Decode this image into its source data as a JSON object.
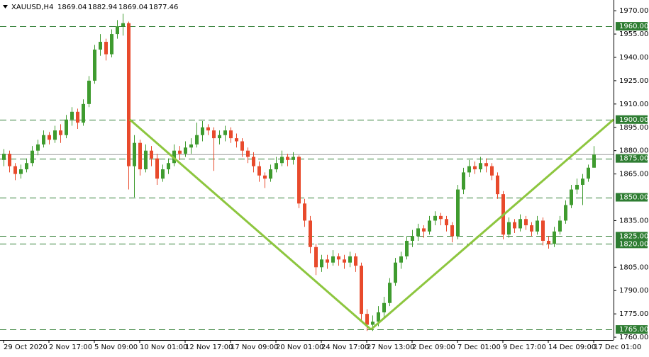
{
  "chart_data": {
    "type": "candlestick",
    "symbol": "XAUUSD,H4",
    "header_ohlc": [
      1869.04,
      1882.94,
      1869.04,
      1877.46
    ],
    "up_color": "#3f9b2f",
    "down_color": "#e84a2c",
    "level_color": "#2e7d32",
    "trend_color": "#8dc63f",
    "ylim": [
      1758.2,
      1976.9
    ],
    "yticks": [
      {
        "value": 1970,
        "label": "1970.00"
      },
      {
        "value": 1955,
        "label": "1955.00"
      },
      {
        "value": 1940,
        "label": "1940.00"
      },
      {
        "value": 1925,
        "label": "1925.00"
      },
      {
        "value": 1910,
        "label": "1910.00"
      },
      {
        "value": 1895,
        "label": "1895.00"
      },
      {
        "value": 1880,
        "label": "1880.00"
      },
      {
        "value": 1865,
        "label": "1865.00"
      },
      {
        "value": 1835,
        "label": "1835.00"
      },
      {
        "value": 1805,
        "label": "1805.00"
      },
      {
        "value": 1790,
        "label": "1790.00"
      },
      {
        "value": 1775,
        "label": "1775.00"
      },
      {
        "value": 1760,
        "label": "1760.00"
      }
    ],
    "levels": [
      {
        "value": 1960,
        "label": "1960.00"
      },
      {
        "value": 1900,
        "label": "1900.00"
      },
      {
        "value": 1875,
        "label": "1875.00"
      },
      {
        "value": 1850,
        "label": "1850.00"
      },
      {
        "value": 1825,
        "label": "1825.00"
      },
      {
        "value": 1820,
        "label": "1820.00"
      },
      {
        "value": 1765,
        "label": "1765.00"
      }
    ],
    "trendlines": [
      {
        "x": [
          22.25,
          64.75
        ],
        "values": [
          1900,
          1765
        ]
      },
      {
        "x": [
          64.75,
          107.5
        ],
        "values": [
          1765,
          1900
        ]
      }
    ],
    "categories": [
      "29 Oct 2020",
      null,
      null,
      null,
      null,
      null,
      null,
      null,
      "2 Nov 17:00",
      null,
      null,
      null,
      null,
      null,
      null,
      null,
      "5 Nov 09:00",
      null,
      null,
      null,
      null,
      null,
      null,
      null,
      "10 Nov 01:00",
      null,
      null,
      null,
      null,
      null,
      null,
      null,
      "12 Nov 17:00",
      null,
      null,
      null,
      null,
      null,
      null,
      null,
      "17 Nov 09:00",
      null,
      null,
      null,
      null,
      null,
      null,
      null,
      "20 Nov 01:00",
      null,
      null,
      null,
      null,
      null,
      null,
      null,
      "24 Nov 17:00",
      null,
      null,
      null,
      null,
      null,
      null,
      null,
      "27 Nov 13:00",
      null,
      null,
      null,
      null,
      null,
      null,
      null,
      "2 Dec 09:00",
      null,
      null,
      null,
      null,
      null,
      null,
      null,
      "7 Dec 01:00",
      null,
      null,
      null,
      null,
      null,
      null,
      null,
      "9 Dec 17:00",
      null,
      null,
      null,
      null,
      null,
      null,
      null,
      "14 Dec 09:00",
      null,
      null,
      null,
      null,
      null,
      null,
      null,
      "17 Dec 01:00"
    ],
    "candles": [
      [
        1874,
        1881,
        1870,
        1878
      ],
      [
        1878,
        1880,
        1866,
        1870
      ],
      [
        1870,
        1872,
        1861,
        1865
      ],
      [
        1865,
        1871,
        1862,
        1868
      ],
      [
        1868,
        1875,
        1866,
        1872
      ],
      [
        1872,
        1883,
        1870,
        1880
      ],
      [
        1880,
        1887,
        1877,
        1884
      ],
      [
        1884,
        1893,
        1882,
        1890
      ],
      [
        1890,
        1892,
        1884,
        1887
      ],
      [
        1887,
        1896,
        1885,
        1893
      ],
      [
        1893,
        1897,
        1885,
        1890
      ],
      [
        1890,
        1903,
        1888,
        1900
      ],
      [
        1900,
        1908,
        1896,
        1905
      ],
      [
        1905,
        1907,
        1894,
        1898
      ],
      [
        1898,
        1913,
        1896,
        1910
      ],
      [
        1910,
        1928,
        1908,
        1925
      ],
      [
        1925,
        1948,
        1923,
        1945
      ],
      [
        1945,
        1955,
        1941,
        1950
      ],
      [
        1950,
        1952,
        1938,
        1942
      ],
      [
        1942,
        1958,
        1940,
        1955
      ],
      [
        1955,
        1964,
        1952,
        1960
      ],
      [
        1960,
        1968,
        1954,
        1962
      ],
      [
        1962,
        1963,
        1855,
        1870
      ],
      [
        1870,
        1890,
        1850,
        1885
      ],
      [
        1885,
        1887,
        1864,
        1868
      ],
      [
        1868,
        1884,
        1866,
        1880
      ],
      [
        1880,
        1883,
        1870,
        1875
      ],
      [
        1875,
        1878,
        1858,
        1862
      ],
      [
        1862,
        1871,
        1860,
        1868
      ],
      [
        1868,
        1875,
        1865,
        1872
      ],
      [
        1872,
        1884,
        1870,
        1880
      ],
      [
        1880,
        1883,
        1874,
        1878
      ],
      [
        1878,
        1886,
        1876,
        1882
      ],
      [
        1882,
        1888,
        1878,
        1884
      ],
      [
        1884,
        1898,
        1882,
        1890
      ],
      [
        1890,
        1899,
        1886,
        1895
      ],
      [
        1895,
        1897,
        1890,
        1893
      ],
      [
        1893,
        1895,
        1867,
        1888
      ],
      [
        1888,
        1893,
        1884,
        1890
      ],
      [
        1890,
        1896,
        1886,
        1893
      ],
      [
        1893,
        1895,
        1885,
        1888
      ],
      [
        1888,
        1891,
        1882,
        1886
      ],
      [
        1886,
        1888,
        1876,
        1880
      ],
      [
        1880,
        1882,
        1872,
        1876
      ],
      [
        1876,
        1879,
        1866,
        1870
      ],
      [
        1870,
        1873,
        1860,
        1864
      ],
      [
        1864,
        1866,
        1856,
        1862
      ],
      [
        1862,
        1871,
        1860,
        1868
      ],
      [
        1868,
        1876,
        1866,
        1872
      ],
      [
        1872,
        1880,
        1870,
        1876
      ],
      [
        1876,
        1878,
        1870,
        1874
      ],
      [
        1874,
        1879,
        1871,
        1876
      ],
      [
        1876,
        1877,
        1843,
        1846
      ],
      [
        1846,
        1849,
        1831,
        1835
      ],
      [
        1835,
        1838,
        1814,
        1818
      ],
      [
        1818,
        1820,
        1800,
        1805
      ],
      [
        1805,
        1813,
        1802,
        1810
      ],
      [
        1810,
        1813,
        1804,
        1808
      ],
      [
        1808,
        1816,
        1806,
        1812
      ],
      [
        1812,
        1814,
        1806,
        1810
      ],
      [
        1810,
        1813,
        1804,
        1808
      ],
      [
        1808,
        1815,
        1805,
        1812
      ],
      [
        1812,
        1814,
        1802,
        1806
      ],
      [
        1806,
        1808,
        1770,
        1775
      ],
      [
        1775,
        1778,
        1764,
        1768
      ],
      [
        1768,
        1774,
        1764,
        1770
      ],
      [
        1770,
        1780,
        1767,
        1776
      ],
      [
        1776,
        1786,
        1773,
        1782
      ],
      [
        1782,
        1798,
        1780,
        1795
      ],
      [
        1795,
        1811,
        1793,
        1808
      ],
      [
        1808,
        1815,
        1804,
        1812
      ],
      [
        1812,
        1825,
        1810,
        1822
      ],
      [
        1822,
        1829,
        1818,
        1825
      ],
      [
        1825,
        1833,
        1822,
        1830
      ],
      [
        1830,
        1832,
        1824,
        1828
      ],
      [
        1828,
        1838,
        1826,
        1835
      ],
      [
        1835,
        1841,
        1832,
        1838
      ],
      [
        1838,
        1840,
        1832,
        1836
      ],
      [
        1836,
        1838,
        1828,
        1832
      ],
      [
        1832,
        1834,
        1821,
        1825
      ],
      [
        1825,
        1858,
        1823,
        1855
      ],
      [
        1855,
        1869,
        1852,
        1866
      ],
      [
        1866,
        1874,
        1863,
        1870
      ],
      [
        1870,
        1873,
        1865,
        1868
      ],
      [
        1868,
        1876,
        1866,
        1872
      ],
      [
        1872,
        1875,
        1866,
        1870
      ],
      [
        1870,
        1872,
        1861,
        1864
      ],
      [
        1864,
        1866,
        1849,
        1852
      ],
      [
        1852,
        1854,
        1823,
        1826
      ],
      [
        1826,
        1837,
        1824,
        1834
      ],
      [
        1834,
        1836,
        1827,
        1830
      ],
      [
        1830,
        1839,
        1828,
        1836
      ],
      [
        1836,
        1838,
        1829,
        1832
      ],
      [
        1832,
        1834,
        1825,
        1828
      ],
      [
        1828,
        1838,
        1826,
        1835
      ],
      [
        1835,
        1837,
        1819,
        1822
      ],
      [
        1822,
        1825,
        1817,
        1820
      ],
      [
        1820,
        1831,
        1818,
        1828
      ],
      [
        1828,
        1838,
        1826,
        1835
      ],
      [
        1835,
        1848,
        1833,
        1845
      ],
      [
        1845,
        1858,
        1843,
        1855
      ],
      [
        1855,
        1862,
        1852,
        1858
      ],
      [
        1858,
        1865,
        1845,
        1862
      ],
      [
        1862,
        1871,
        1860,
        1869.04
      ],
      [
        1869.04,
        1882.94,
        1869.04,
        1877.46
      ]
    ]
  }
}
